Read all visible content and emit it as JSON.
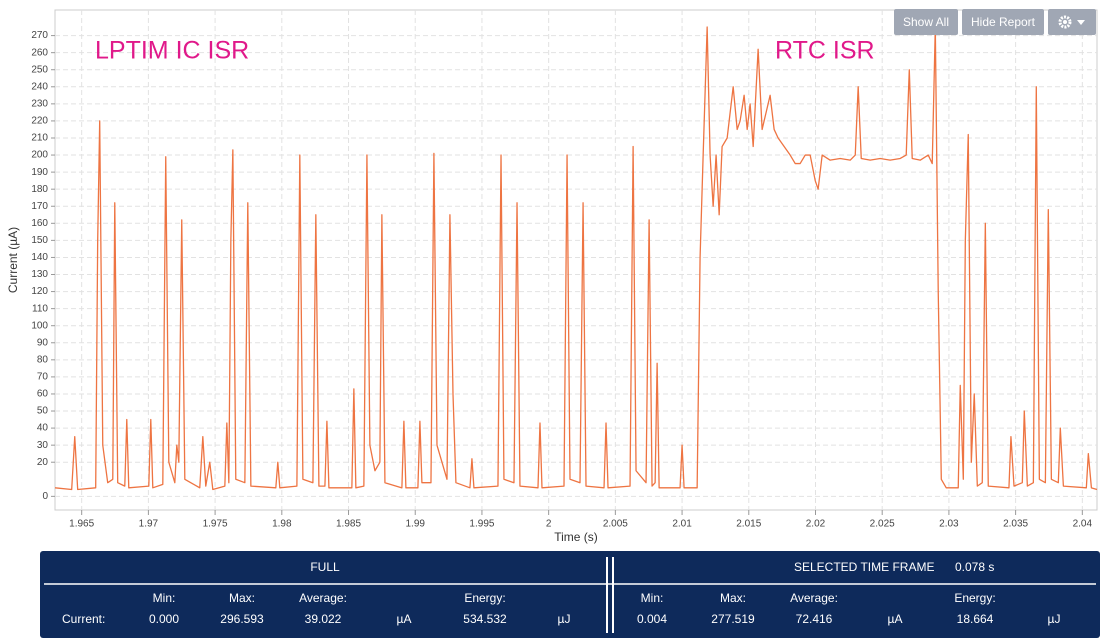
{
  "chart_data": {
    "type": "line",
    "annotations": [
      "LPTIM IC ISR",
      "RTC ISR"
    ],
    "xlabel": "Time (s)",
    "ylabel": "Current (µA)",
    "xlim": [
      1.963,
      2.0411
    ],
    "ylim": [
      -8,
      285
    ],
    "xticks": [
      1.965,
      1.97,
      1.975,
      1.98,
      1.985,
      1.99,
      1.995,
      2,
      2.005,
      2.01,
      2.015,
      2.02,
      2.025,
      2.03,
      2.035,
      2.04
    ],
    "yticks": [
      0,
      20,
      30,
      40,
      50,
      60,
      70,
      80,
      90,
      100,
      110,
      120,
      130,
      140,
      150,
      160,
      170,
      180,
      190,
      200,
      210,
      220,
      230,
      240,
      250,
      260,
      270
    ],
    "grid": true,
    "x": [
      1.963,
      1.96425,
      1.96448,
      1.9647,
      1.96605,
      1.9662,
      1.96635,
      1.96658,
      1.96695,
      1.96733,
      1.96748,
      1.9677,
      1.96823,
      1.96838,
      1.96853,
      1.97003,
      1.97018,
      1.97033,
      1.97108,
      1.9713,
      1.97153,
      1.97198,
      1.97213,
      1.97228,
      1.9725,
      1.97273,
      1.97385,
      1.97408,
      1.9743,
      1.9746,
      1.97483,
      1.97573,
      1.97588,
      1.97603,
      1.97618,
      1.97633,
      1.97655,
      1.97723,
      1.97745,
      1.97768,
      1.97955,
      1.9797,
      1.97985,
      1.98113,
      1.98135,
      1.98158,
      1.98233,
      1.98255,
      1.98278,
      1.98323,
      1.98338,
      1.98353,
      1.98525,
      1.9854,
      1.98555,
      1.98615,
      1.98638,
      1.9866,
      1.98698,
      1.98735,
      1.9875,
      1.98773,
      1.989,
      1.98915,
      1.9893,
      1.9902,
      1.99035,
      1.9905,
      1.99118,
      1.9914,
      1.99163,
      1.99238,
      1.9926,
      1.99283,
      1.99305,
      1.9941,
      1.99425,
      1.9944,
      1.9962,
      1.99643,
      1.99665,
      1.9974,
      1.99763,
      1.99785,
      1.9992,
      1.99935,
      1.9995,
      2.00115,
      2.00138,
      2.0016,
      2.00235,
      2.00258,
      2.0028,
      2.00415,
      2.0043,
      2.00445,
      2.0061,
      2.00633,
      2.00655,
      2.0073,
      2.00753,
      2.00775,
      2.00798,
      2.00813,
      2.00828,
      2.00985,
      2.01,
      2.01015,
      2.01113,
      2.01135,
      2.01158,
      2.01188,
      2.0121,
      2.01233,
      2.01255,
      2.01278,
      2.013,
      2.01338,
      2.01383,
      2.01413,
      2.01435,
      2.01465,
      2.01488,
      2.0151,
      2.01533,
      2.0157,
      2.016,
      2.0163,
      2.0166,
      2.0169,
      2.0172,
      2.01765,
      2.0181,
      2.01848,
      2.01885,
      2.01923,
      2.0196,
      2.01998,
      2.0202,
      2.0205,
      2.0211,
      2.02185,
      2.0226,
      2.02298,
      2.0232,
      2.02343,
      2.0241,
      2.02485,
      2.0256,
      2.02635,
      2.0268,
      2.02703,
      2.02725,
      2.02785,
      2.02845,
      2.02875,
      2.02898,
      2.0292,
      2.02943,
      2.0298,
      2.0307,
      2.03085,
      2.03108,
      2.03123,
      2.03145,
      2.03168,
      2.0319,
      2.03213,
      2.0325,
      2.03273,
      2.03295,
      2.0345,
      2.03465,
      2.03488,
      2.0355,
      2.03565,
      2.03588,
      2.03633,
      2.03655,
      2.03678,
      2.03723,
      2.03745,
      2.03768,
      2.0382,
      2.03835,
      2.03858,
      2.0403,
      2.04045,
      2.04068,
      2.0411
    ],
    "series": [
      {
        "name": "Current",
        "color": "#ee7442",
        "values": [
          5,
          4,
          35,
          4,
          5,
          150,
          220,
          30,
          8,
          10,
          172,
          8,
          6,
          45,
          5,
          6,
          45,
          5,
          7,
          199,
          20,
          8,
          30,
          20,
          162,
          10,
          5,
          35,
          6,
          20,
          4,
          6,
          43,
          8,
          150,
          203,
          10,
          8,
          172,
          6,
          5,
          20,
          5,
          6,
          200,
          10,
          8,
          165,
          6,
          6,
          44,
          5,
          5,
          63,
          5,
          6,
          200,
          30,
          15,
          20,
          165,
          8,
          5,
          44,
          5,
          5,
          44,
          8,
          8,
          201,
          30,
          10,
          165,
          60,
          8,
          5,
          22,
          5,
          6,
          200,
          10,
          8,
          172,
          6,
          5,
          43,
          5,
          6,
          200,
          10,
          8,
          172,
          6,
          5,
          43,
          5,
          6,
          205,
          15,
          8,
          162,
          6,
          8,
          78,
          5,
          5,
          30,
          5,
          5,
          140,
          200,
          275,
          200,
          170,
          200,
          165,
          205,
          210,
          240,
          215,
          220,
          235,
          215,
          230,
          205,
          262,
          215,
          225,
          235,
          215,
          210,
          205,
          200,
          195,
          195,
          200,
          200,
          185,
          180,
          200,
          197,
          198,
          197,
          200,
          240,
          198,
          197,
          198,
          197,
          198,
          200,
          250,
          198,
          197,
          200,
          195,
          275,
          120,
          10,
          5,
          5,
          65,
          10,
          150,
          212,
          20,
          60,
          6,
          8,
          160,
          6,
          5,
          35,
          6,
          8,
          50,
          6,
          8,
          240,
          10,
          8,
          168,
          10,
          8,
          40,
          6,
          5,
          25,
          5,
          4
        ]
      }
    ]
  },
  "toolbar": {
    "show_all": "Show All",
    "hide_report": "Hide Report"
  },
  "report": {
    "full": {
      "title": "FULL",
      "row_label": "Current:",
      "min_label": "Min:",
      "min": "0.000",
      "max_label": "Max:",
      "max": "296.593",
      "average_label": "Average:",
      "average": "39.022",
      "average_unit": "µA",
      "energy_label": "Energy:",
      "energy": "534.532",
      "energy_unit": "µJ"
    },
    "selected": {
      "title": "SELECTED TIME FRAME",
      "duration": "0.078 s",
      "min_label": "Min:",
      "min": "0.004",
      "max_label": "Max:",
      "max": "277.519",
      "average_label": "Average:",
      "average": "72.416",
      "average_unit": "µA",
      "energy_label": "Energy:",
      "energy": "18.664",
      "energy_unit": "µJ"
    }
  }
}
